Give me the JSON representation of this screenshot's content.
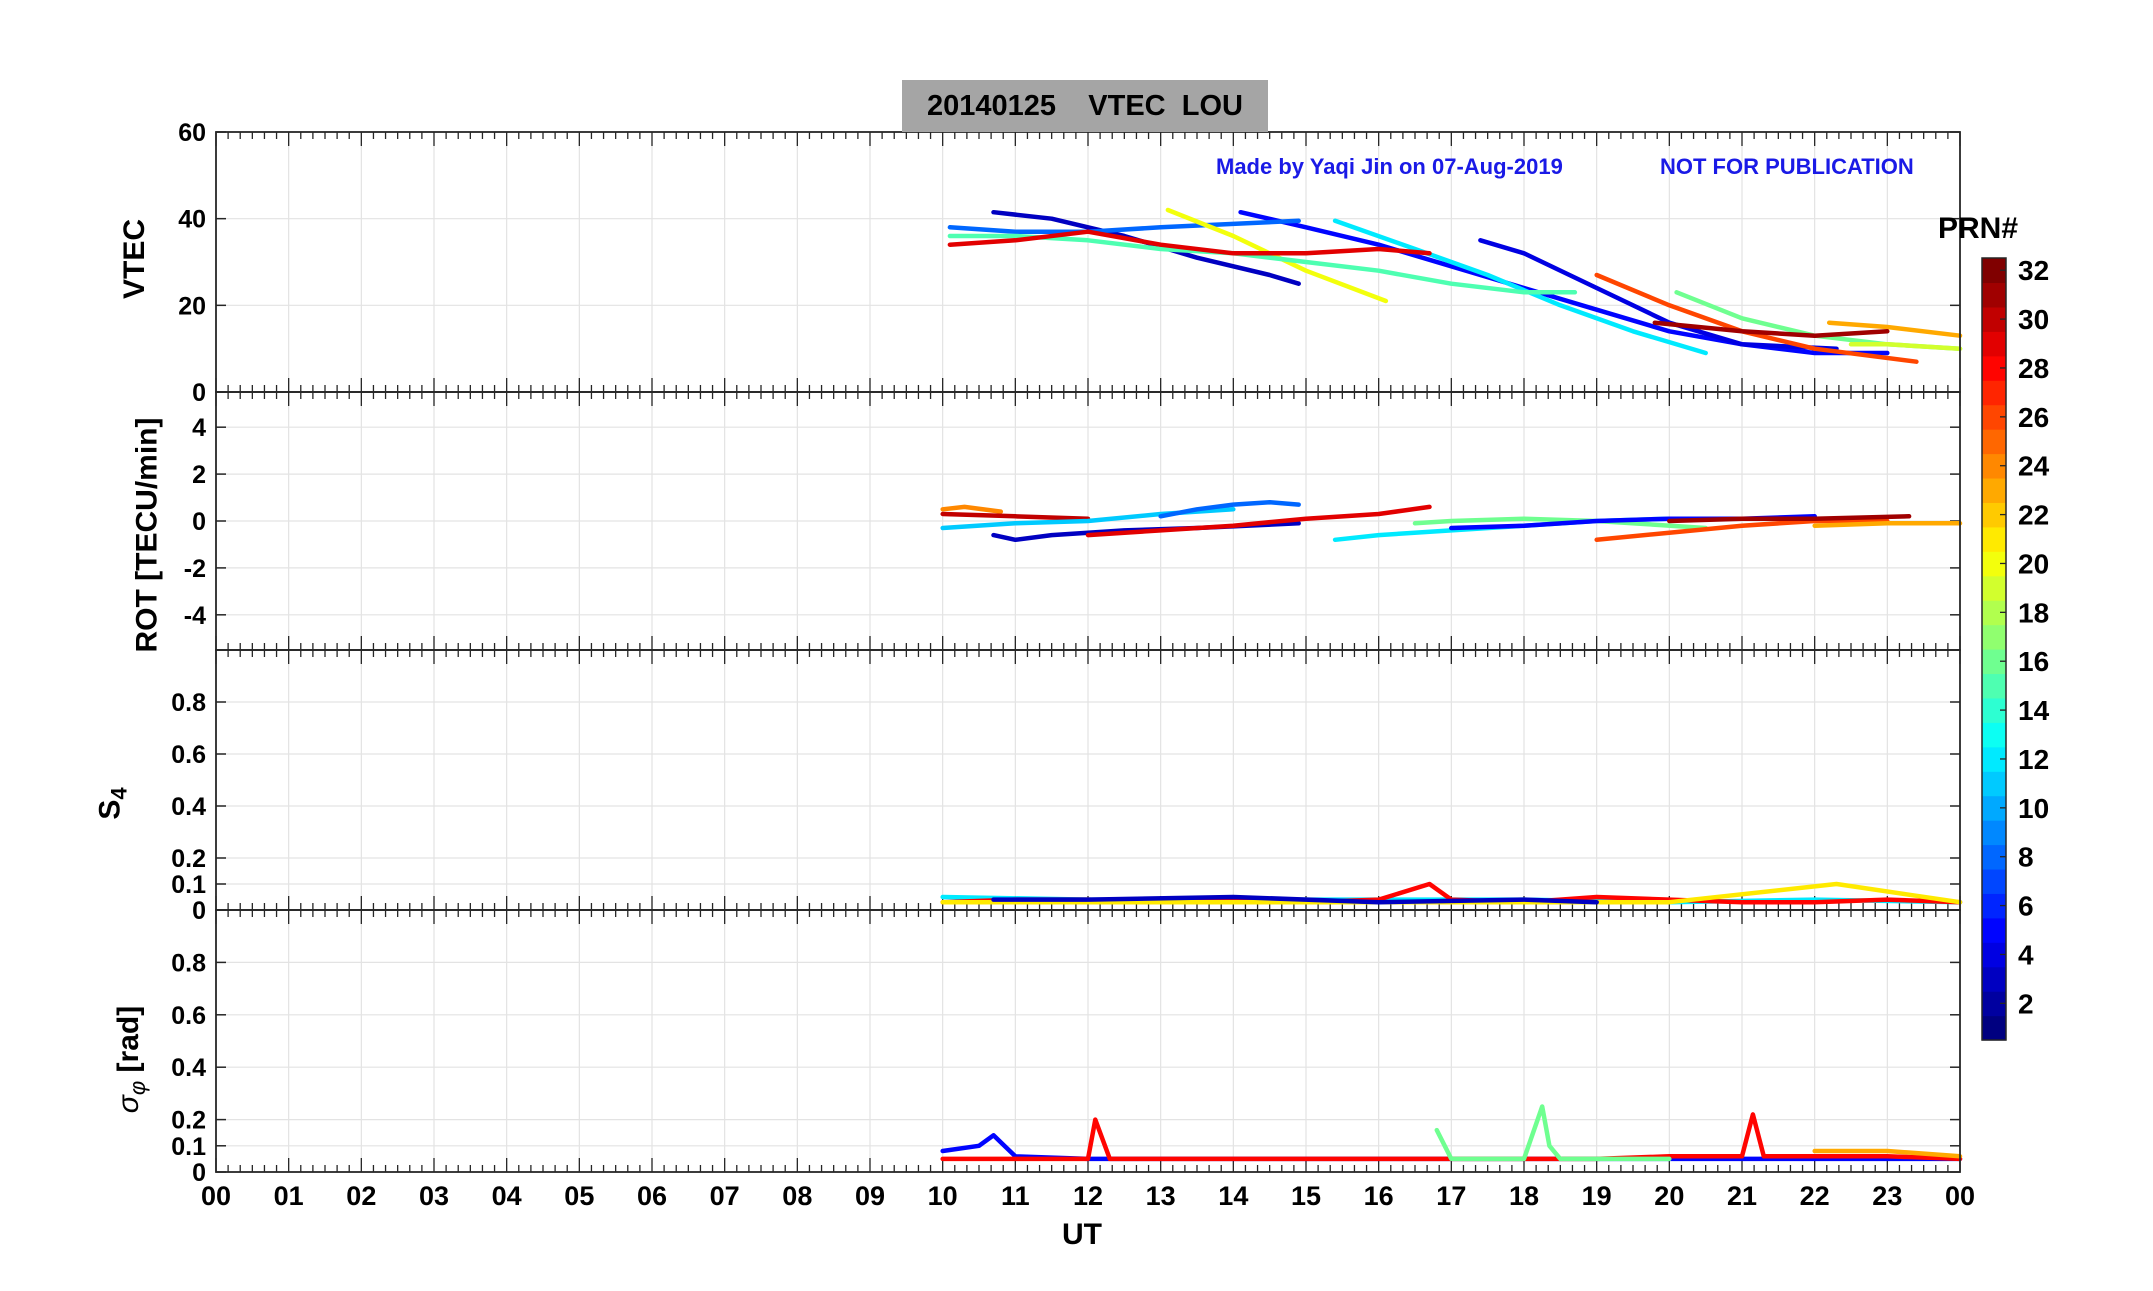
{
  "figure": {
    "title": "20140125    VTEC  LOU",
    "credit": "Made by Yaqi Jin on 07-Aug-2019",
    "notice": "NOT FOR PUBLICATION",
    "xlabel": "UT",
    "colorbar_label": "PRN#"
  },
  "chart_data": [
    {
      "type": "line",
      "name": "VTEC",
      "ylabel": "VTEC",
      "ylim": [
        0,
        60
      ],
      "yticks": [
        0,
        20,
        40,
        60
      ],
      "xlim": [
        0,
        24
      ],
      "grid": true,
      "series_note": "one line per satellite PRN, colored by PRN",
      "series": [
        {
          "prn": 3,
          "x": [
            10.7,
            11.5,
            12.5,
            13.5,
            14.5,
            14.9
          ],
          "y": [
            41.5,
            40,
            36,
            31,
            27,
            25
          ]
        },
        {
          "prn": 5,
          "x": [
            14.1,
            15,
            16,
            17,
            18,
            19,
            20,
            21,
            22,
            23
          ],
          "y": [
            41.5,
            38,
            34,
            29,
            24,
            19,
            14,
            11,
            9,
            9
          ]
        },
        {
          "prn": 4,
          "x": [
            17.4,
            18,
            19,
            20,
            21,
            22.3
          ],
          "y": [
            35,
            32,
            24,
            16,
            11,
            10
          ]
        },
        {
          "prn": 8,
          "x": [
            10.1,
            11,
            12,
            13,
            14.9
          ],
          "y": [
            38,
            37,
            37,
            38,
            39.5
          ]
        },
        {
          "prn": 12,
          "x": [
            15.4,
            16.5,
            17.5,
            18.5,
            19.5,
            20.5
          ],
          "y": [
            39.5,
            33,
            27,
            20,
            14,
            9
          ]
        },
        {
          "prn": 20,
          "x": [
            13.1,
            14,
            15,
            16.1
          ],
          "y": [
            42,
            36,
            28,
            21
          ]
        },
        {
          "prn": 15,
          "x": [
            10.1,
            11,
            12,
            13,
            14,
            15,
            16,
            17,
            18,
            18.7
          ],
          "y": [
            36,
            36,
            35,
            33,
            32,
            30,
            28,
            25,
            23,
            23
          ]
        },
        {
          "prn": 29,
          "x": [
            10.1,
            11,
            12,
            13,
            14,
            15,
            16,
            16.7
          ],
          "y": [
            34,
            35,
            37,
            34,
            32,
            32,
            33,
            32
          ]
        },
        {
          "prn": 26,
          "x": [
            19,
            20,
            21,
            22,
            23.4
          ],
          "y": [
            27,
            20,
            14,
            10,
            7
          ]
        },
        {
          "prn": 16,
          "x": [
            20.1,
            21,
            22,
            23,
            24
          ],
          "y": [
            23,
            17,
            13,
            11,
            10
          ]
        },
        {
          "prn": 23,
          "x": [
            22.2,
            23,
            24
          ],
          "y": [
            16,
            15,
            13
          ]
        },
        {
          "prn": 31,
          "x": [
            19.8,
            21,
            22,
            23
          ],
          "y": [
            16,
            14,
            13,
            14
          ]
        },
        {
          "prn": 19,
          "x": [
            22.5,
            23,
            24
          ],
          "y": [
            11,
            11,
            10
          ]
        }
      ]
    },
    {
      "type": "line",
      "name": "ROT",
      "ylabel": "ROT [TECU/min]",
      "ylim": [
        -5.5,
        5.5
      ],
      "yticks": [
        -4,
        -2,
        0,
        2,
        4
      ],
      "xlim": [
        0,
        24
      ],
      "grid": true,
      "series": [
        {
          "prn": 24,
          "x": [
            10,
            10.3,
            10.8
          ],
          "y": [
            0.5,
            0.6,
            0.4
          ]
        },
        {
          "prn": 30,
          "x": [
            10,
            11,
            12
          ],
          "y": [
            0.3,
            0.2,
            0.1
          ]
        },
        {
          "prn": 3,
          "x": [
            10.7,
            11,
            11.5,
            12.5,
            13.5,
            14.9
          ],
          "y": [
            -0.6,
            -0.8,
            -0.6,
            -0.4,
            -0.3,
            -0.1
          ]
        },
        {
          "prn": 11,
          "x": [
            10,
            11,
            12,
            13,
            14
          ],
          "y": [
            -0.3,
            -0.1,
            0,
            0.3,
            0.5
          ]
        },
        {
          "prn": 8,
          "x": [
            13,
            13.5,
            14,
            14.5,
            14.9
          ],
          "y": [
            0.2,
            0.5,
            0.7,
            0.8,
            0.7
          ]
        },
        {
          "prn": 29,
          "x": [
            12,
            13,
            14,
            15,
            16,
            16.7
          ],
          "y": [
            -0.6,
            -0.4,
            -0.2,
            0.1,
            0.3,
            0.6
          ]
        },
        {
          "prn": 12,
          "x": [
            15.4,
            16,
            17,
            18,
            19,
            20
          ],
          "y": [
            -0.8,
            -0.6,
            -0.4,
            -0.2,
            0,
            0.1
          ]
        },
        {
          "prn": 16,
          "x": [
            16.5,
            17,
            18,
            19,
            20.5
          ],
          "y": [
            -0.1,
            0,
            0.1,
            0,
            -0.3
          ]
        },
        {
          "prn": 5,
          "x": [
            17,
            18,
            19,
            20,
            21,
            22
          ],
          "y": [
            -0.3,
            -0.2,
            0,
            0.1,
            0.1,
            0.2
          ]
        },
        {
          "prn": 26,
          "x": [
            19,
            20,
            21,
            22,
            23
          ],
          "y": [
            -0.8,
            -0.5,
            -0.2,
            0,
            0
          ]
        },
        {
          "prn": 31,
          "x": [
            20,
            21,
            22,
            23.3
          ],
          "y": [
            0,
            0.1,
            0.1,
            0.2
          ]
        },
        {
          "prn": 23,
          "x": [
            22,
            23,
            24
          ],
          "y": [
            -0.2,
            -0.1,
            -0.1
          ]
        }
      ]
    },
    {
      "type": "line",
      "name": "S4",
      "ylabel": "S4",
      "ylim": [
        0,
        1
      ],
      "yticks": [
        0,
        0.1,
        0.2,
        0.4,
        0.6,
        0.8
      ],
      "xlim": [
        0,
        24
      ],
      "grid": true,
      "series": [
        {
          "prn": 12,
          "x": [
            10,
            12,
            14,
            16,
            18,
            20,
            22,
            24
          ],
          "y": [
            0.05,
            0.04,
            0.04,
            0.04,
            0.04,
            0.03,
            0.04,
            0.03
          ]
        },
        {
          "prn": 28,
          "x": [
            10,
            11,
            12,
            13,
            14,
            15,
            16,
            16.7,
            17,
            18,
            19,
            20,
            21,
            22,
            23,
            24
          ],
          "y": [
            0.03,
            0.04,
            0.04,
            0.03,
            0.04,
            0.03,
            0.04,
            0.1,
            0.04,
            0.03,
            0.05,
            0.04,
            0.03,
            0.03,
            0.04,
            0.03
          ]
        },
        {
          "prn": 21,
          "x": [
            10,
            12,
            14,
            16,
            18,
            20,
            22.3,
            24
          ],
          "y": [
            0.03,
            0.03,
            0.03,
            0.03,
            0.03,
            0.03,
            0.1,
            0.03
          ]
        },
        {
          "prn": 3,
          "x": [
            10.7,
            12,
            14,
            16,
            18,
            19
          ],
          "y": [
            0.04,
            0.04,
            0.05,
            0.03,
            0.04,
            0.03
          ]
        }
      ]
    },
    {
      "type": "line",
      "name": "sigma_phi",
      "ylabel_symbol": "σ",
      "ylabel_subscript": "φ",
      "ylabel_unit": " [rad]",
      "ylim": [
        0,
        1
      ],
      "yticks": [
        0,
        0.1,
        0.2,
        0.4,
        0.6,
        0.8
      ],
      "xlim": [
        0,
        24
      ],
      "grid": true,
      "series": [
        {
          "prn": 5,
          "x": [
            10,
            10.5,
            10.7,
            11,
            12,
            14,
            16,
            18,
            20,
            22,
            24
          ],
          "y": [
            0.08,
            0.1,
            0.14,
            0.06,
            0.05,
            0.05,
            0.05,
            0.05,
            0.05,
            0.05,
            0.05
          ]
        },
        {
          "prn": 28,
          "x": [
            10,
            11,
            12,
            12.1,
            12.3,
            13,
            14,
            16,
            17,
            18,
            19,
            20,
            21,
            21.15,
            21.3,
            22,
            23,
            24
          ],
          "y": [
            0.05,
            0.05,
            0.05,
            0.2,
            0.05,
            0.05,
            0.05,
            0.05,
            0.05,
            0.05,
            0.05,
            0.06,
            0.06,
            0.22,
            0.06,
            0.06,
            0.06,
            0.05
          ]
        },
        {
          "prn": 16,
          "x": [
            16.8,
            17,
            18,
            18.25,
            18.35,
            18.5,
            19,
            20
          ],
          "y": [
            0.16,
            0.05,
            0.05,
            0.25,
            0.1,
            0.05,
            0.05,
            0.05
          ]
        },
        {
          "prn": 23,
          "x": [
            22,
            23,
            24
          ],
          "y": [
            0.08,
            0.08,
            0.06
          ]
        }
      ]
    }
  ],
  "axes": {
    "xticks": [
      "00",
      "01",
      "02",
      "03",
      "04",
      "05",
      "06",
      "07",
      "08",
      "09",
      "10",
      "11",
      "12",
      "13",
      "14",
      "15",
      "16",
      "17",
      "18",
      "19",
      "20",
      "21",
      "22",
      "23",
      "00"
    ]
  },
  "colorbar": {
    "label": "PRN#",
    "range": [
      1,
      32
    ],
    "ticks": [
      "2",
      "4",
      "6",
      "8",
      "10",
      "12",
      "14",
      "16",
      "18",
      "20",
      "22",
      "24",
      "26",
      "28",
      "30",
      "32"
    ],
    "colormap": "jet"
  }
}
